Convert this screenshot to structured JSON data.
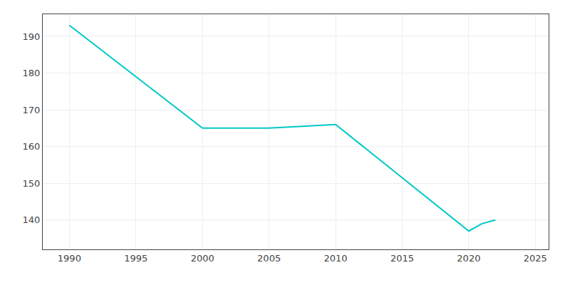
{
  "chart_data": {
    "type": "line",
    "x": [
      1990,
      2000,
      2005,
      2010,
      2020,
      2021,
      2022
    ],
    "values": [
      193,
      165,
      165,
      166,
      137,
      139,
      140
    ],
    "color": "#00C8C8",
    "xlim": [
      1988,
      2026
    ],
    "ylim": [
      132,
      196
    ],
    "xticks": [
      1990,
      1995,
      2000,
      2005,
      2010,
      2015,
      2020,
      2025
    ],
    "yticks": [
      140,
      150,
      160,
      170,
      180,
      190
    ],
    "grid": true
  }
}
